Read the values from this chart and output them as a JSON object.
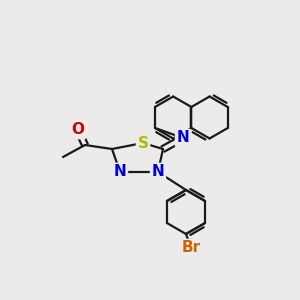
{
  "background_color": "#ebebeb",
  "line_color": "#1a1a1a",
  "atom_colors": {
    "O": "#cc0000",
    "S": "#b8b800",
    "N": "#0000dd",
    "Br": "#cc6600",
    "C": "#1a1a1a"
  },
  "lw": 1.6,
  "naph_r": 22,
  "ring_r": 26,
  "bph_r": 22,
  "fs": 11
}
